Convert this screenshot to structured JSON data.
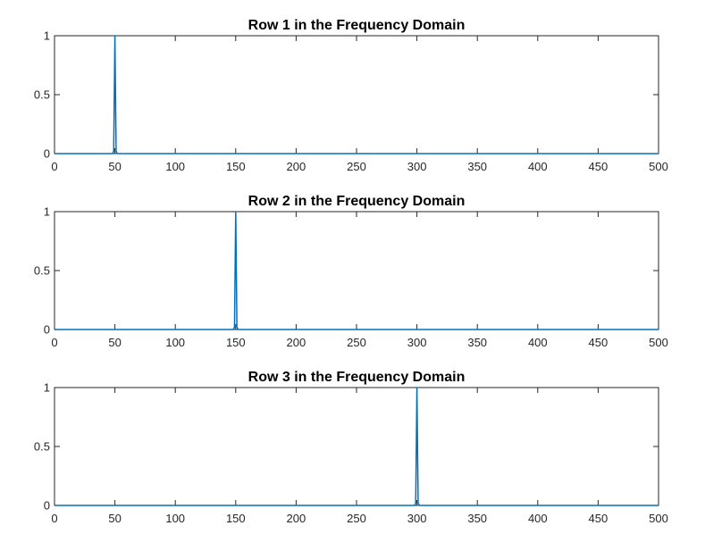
{
  "colors": {
    "series": "#0072BD",
    "axes": "#262626",
    "background": "#ffffff"
  },
  "chart_data": [
    {
      "type": "line",
      "title": "Row 1 in the Frequency Domain",
      "xlabel": "",
      "ylabel": "",
      "xlim": [
        0,
        500
      ],
      "ylim": [
        0,
        1
      ],
      "xticks": [
        0,
        50,
        100,
        150,
        200,
        250,
        300,
        350,
        400,
        450,
        500
      ],
      "xtick_labels": [
        "0",
        "50",
        "100",
        "150",
        "200",
        "250",
        "300",
        "350",
        "400",
        "450",
        "500"
      ],
      "yticks": [
        0,
        0.5,
        1
      ],
      "ytick_labels": [
        "0",
        "0.5",
        "1"
      ],
      "grid": false,
      "series": [
        {
          "x": [
            0,
            48,
            49,
            50,
            51,
            52,
            500
          ],
          "y": [
            0,
            0,
            0.02,
            1,
            0.02,
            0,
            0
          ]
        }
      ]
    },
    {
      "type": "line",
      "title": "Row 2 in the Frequency Domain",
      "xlabel": "",
      "ylabel": "",
      "xlim": [
        0,
        500
      ],
      "ylim": [
        0,
        1
      ],
      "xticks": [
        0,
        50,
        100,
        150,
        200,
        250,
        300,
        350,
        400,
        450,
        500
      ],
      "xtick_labels": [
        "0",
        "50",
        "100",
        "150",
        "200",
        "250",
        "300",
        "350",
        "400",
        "450",
        "500"
      ],
      "yticks": [
        0,
        0.5,
        1
      ],
      "ytick_labels": [
        "0",
        "0.5",
        "1"
      ],
      "grid": false,
      "series": [
        {
          "x": [
            0,
            148,
            149,
            150,
            151,
            152,
            500
          ],
          "y": [
            0,
            0,
            0.02,
            1,
            0.02,
            0,
            0
          ]
        }
      ]
    },
    {
      "type": "line",
      "title": "Row 3 in the Frequency Domain",
      "xlabel": "",
      "ylabel": "",
      "xlim": [
        0,
        500
      ],
      "ylim": [
        0,
        1
      ],
      "xticks": [
        0,
        50,
        100,
        150,
        200,
        250,
        300,
        350,
        400,
        450,
        500
      ],
      "xtick_labels": [
        "0",
        "50",
        "100",
        "150",
        "200",
        "250",
        "300",
        "350",
        "400",
        "450",
        "500"
      ],
      "yticks": [
        0,
        0.5,
        1
      ],
      "ytick_labels": [
        "0",
        "0.5",
        "1"
      ],
      "grid": false,
      "series": [
        {
          "x": [
            0,
            298,
            299,
            300,
            301,
            302,
            500
          ],
          "y": [
            0,
            0,
            0.02,
            1,
            0.02,
            0,
            0
          ]
        }
      ]
    }
  ]
}
